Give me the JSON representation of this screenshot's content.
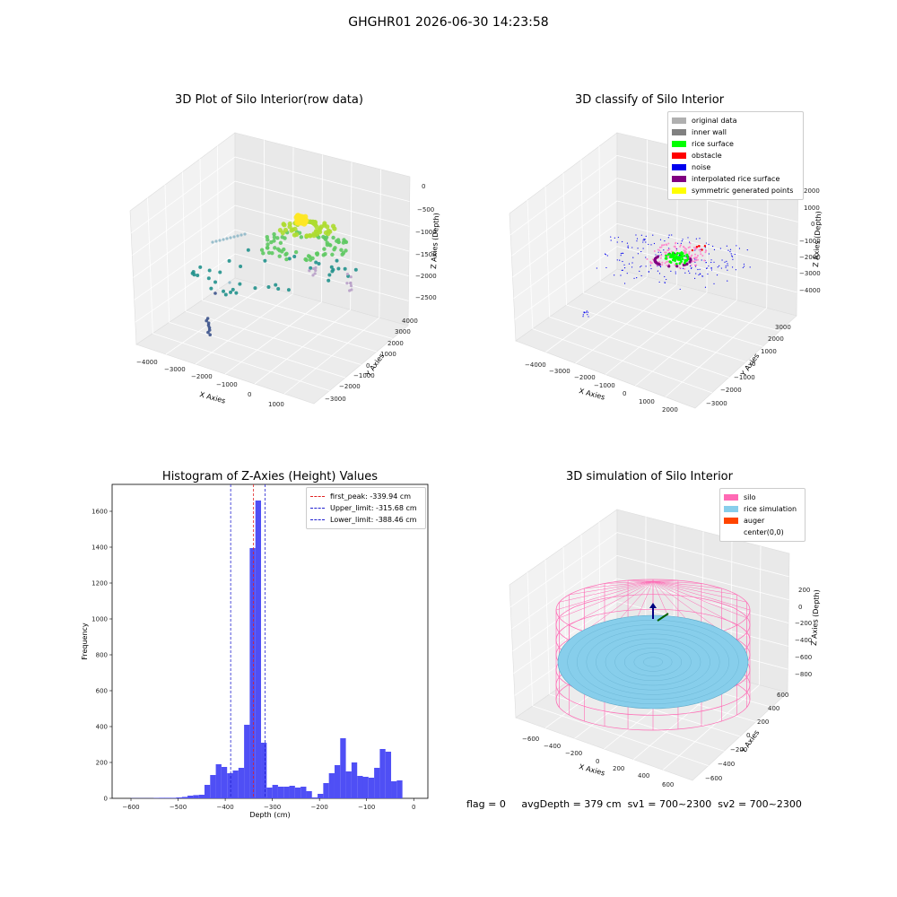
{
  "suptitle": "GHGHR01 2026-06-30 14:23:58",
  "footer": {
    "flag": "flag = 0",
    "avg": "avgDepth = 379 cm",
    "sv1": "sv1 = 700~2300",
    "sv2": "sv2 = 700~2300"
  },
  "colors": {
    "histogram": "#4f4ff5",
    "peak_line": "#e02020",
    "limit_line": "#2020d0",
    "silo": "#ff69b4",
    "rice": "#87ceeb",
    "auger": "#ff4500"
  },
  "chart_data": [
    {
      "type": "scatter",
      "projection": "3d",
      "title": "3D Plot of Silo Interior(row data)",
      "xlabel": "X Axies",
      "ylabel": "Y Axies",
      "zlabel": "Z Axies (Depth)",
      "xticks": [
        "−4000",
        "−3000",
        "−2000",
        "−1000",
        "0",
        "1000"
      ],
      "yticks": [
        "−3000",
        "−2000",
        "−1000",
        "0",
        "1000",
        "2000",
        "3000",
        "4000"
      ],
      "zticks": [
        "0",
        "−500",
        "−1000",
        "−1500",
        "−2000",
        "−2500"
      ],
      "colormap": "viridis"
    },
    {
      "type": "scatter",
      "projection": "3d",
      "title": "3D classify of Silo Interior",
      "xlabel": "X Axies",
      "ylabel": "Y Axies",
      "zlabel": "Z Axies (Depth)",
      "xticks": [
        "−4000",
        "−3000",
        "−2000",
        "−1000",
        "0",
        "1000",
        "2000"
      ],
      "yticks": [
        "−3000",
        "−2000",
        "−1000",
        "0",
        "1000",
        "2000",
        "3000"
      ],
      "zticks": [
        "2000",
        "1000",
        "0",
        "−1000",
        "−2000",
        "−3000",
        "−4000"
      ],
      "legend": [
        {
          "label": "original data",
          "color": "#b0b0b0"
        },
        {
          "label": "inner wall",
          "color": "#808080"
        },
        {
          "label": "rice surface",
          "color": "#00ff00"
        },
        {
          "label": "obstacle",
          "color": "#ff0000"
        },
        {
          "label": "noise",
          "color": "#0000ee"
        },
        {
          "label": "interpolated rice surface",
          "color": "#800080"
        },
        {
          "label": "symmetric generated points",
          "color": "#ffff00"
        }
      ]
    },
    {
      "type": "bar",
      "title": "Histogram of Z-Axies (Height) Values",
      "xlabel": "Depth (cm)",
      "ylabel": "Frequency",
      "xlim": [
        -640,
        30
      ],
      "ylim": [
        0,
        1750
      ],
      "xticks": [
        -600,
        -500,
        -400,
        -300,
        -200,
        -100,
        0
      ],
      "xtick_labels": [
        "−600",
        "−500",
        "−400",
        "−300",
        "−200",
        "−100",
        "0"
      ],
      "yticks": [
        0,
        200,
        400,
        600,
        800,
        1000,
        1200,
        1400,
        1600
      ],
      "bin_start": -600,
      "bin_width": 12,
      "values": [
        1,
        1,
        1,
        1,
        2,
        3,
        3,
        3,
        5,
        8,
        15,
        18,
        20,
        75,
        130,
        190,
        175,
        140,
        155,
        170,
        410,
        1395,
        1660,
        310,
        60,
        75,
        65,
        65,
        70,
        60,
        65,
        40,
        5,
        25,
        85,
        140,
        185,
        335,
        150,
        200,
        125,
        120,
        115,
        170,
        275,
        260,
        95,
        100
      ],
      "vlines": [
        {
          "label": "first_peak: -339.94 cm",
          "x": -339.94,
          "color": "#e02020"
        },
        {
          "label": "Upper_limit: -315.68 cm",
          "x": -315.68,
          "color": "#2020d0"
        },
        {
          "label": "Lower_limit: -388.46 cm",
          "x": -388.46,
          "color": "#2020d0"
        }
      ],
      "legend_position": "upper right"
    },
    {
      "type": "scatter",
      "projection": "3d",
      "title": "3D simulation of Silo Interior",
      "xlabel": "X Axies",
      "ylabel": "Y Axies",
      "zlabel": "Z Axies (Depth)",
      "xticks": [
        "−600",
        "−400",
        "−200",
        "0",
        "200",
        "400",
        "600"
      ],
      "yticks": [
        "−600",
        "−400",
        "−200",
        "0",
        "200",
        "400",
        "600"
      ],
      "zticks": [
        "200",
        "0",
        "−200",
        "−400",
        "−600",
        "−800"
      ],
      "legend": [
        {
          "label": "silo",
          "color": "#ff69b4"
        },
        {
          "label": "rice simulation",
          "color": "#87ceeb"
        },
        {
          "label": "auger",
          "color": "#ff4500"
        },
        {
          "label": "center(0,0)",
          "color": ""
        }
      ]
    }
  ]
}
